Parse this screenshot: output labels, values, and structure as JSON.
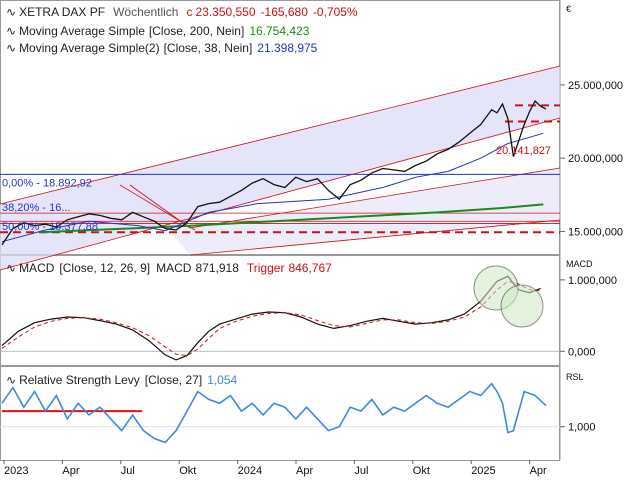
{
  "chart_data": [
    {
      "type": "line",
      "panel": "price",
      "title": "XETRA DAX PF",
      "interval": "Wöchentlich",
      "currency": "€",
      "last": {
        "prefix": "c",
        "close": "23.350,550",
        "change": "-165,680",
        "change_pct": "-0,705%"
      },
      "x_labels": [
        "2023",
        "Apr",
        "Jul",
        "Okt",
        "2024",
        "Apr",
        "Jul",
        "Okt",
        "2025",
        "Apr"
      ],
      "y_ticks": [
        "25.000,000",
        "20.000,000",
        "15.000,000"
      ],
      "ylim": [
        13600,
        26700
      ],
      "series": [
        {
          "name": "Moving Average Simple",
          "params": "[Close, 200, Nein]",
          "value": "16.754,423",
          "color": "#1a8c1a",
          "x": [
            0.07,
            0.2,
            0.35,
            0.5,
            0.65,
            0.8,
            0.92,
            0.995
          ],
          "values": [
            14950,
            15150,
            15400,
            15700,
            16000,
            16300,
            16600,
            16850
          ]
        },
        {
          "name": "Moving Average Simple(2)",
          "params": "[Close, 38, Nein]",
          "value": "21.398,975",
          "color": "#2233cc",
          "x": [
            0.0,
            0.08,
            0.16,
            0.25,
            0.3,
            0.38,
            0.47,
            0.6,
            0.7,
            0.76,
            0.82,
            0.88,
            0.93,
            0.995
          ],
          "values": [
            14300,
            15100,
            15700,
            15400,
            15050,
            16300,
            16900,
            17200,
            18000,
            18700,
            19100,
            20000,
            21000,
            21700
          ]
        },
        {
          "name": "close",
          "color": "#111111",
          "x": [
            0.0,
            0.02,
            0.04,
            0.06,
            0.08,
            0.1,
            0.12,
            0.14,
            0.16,
            0.18,
            0.2,
            0.22,
            0.24,
            0.26,
            0.28,
            0.3,
            0.32,
            0.34,
            0.36,
            0.38,
            0.4,
            0.42,
            0.44,
            0.46,
            0.48,
            0.5,
            0.52,
            0.54,
            0.56,
            0.58,
            0.6,
            0.62,
            0.64,
            0.66,
            0.68,
            0.7,
            0.72,
            0.74,
            0.76,
            0.78,
            0.8,
            0.82,
            0.84,
            0.86,
            0.88,
            0.9,
            0.91,
            0.92,
            0.93,
            0.94,
            0.96,
            0.97,
            0.98,
            0.99,
            1.0
          ],
          "values": [
            14100,
            15200,
            15600,
            15400,
            15500,
            15300,
            15800,
            16000,
            16200,
            16100,
            15900,
            15800,
            16300,
            16000,
            15700,
            15200,
            15100,
            15600,
            16700,
            16900,
            17000,
            17400,
            17800,
            18300,
            18600,
            18200,
            18000,
            18700,
            18400,
            18600,
            17800,
            17200,
            18200,
            18500,
            19000,
            19300,
            19200,
            19100,
            19500,
            19800,
            20300,
            20600,
            21100,
            21700,
            22300,
            23300,
            23100,
            23700,
            22700,
            20100,
            22300,
            23200,
            23900,
            23550,
            23350
          ]
        }
      ],
      "annotations": [
        {
          "text": "0,00% - 18.892,92",
          "color": "#2233cc",
          "value": 18892.92
        },
        {
          "text": "38,20% - 16...",
          "color": "#2233cc",
          "value": 16250
        },
        {
          "text": "50,00% - 15.377,88",
          "color": "#2233cc",
          "value": 15377.88
        },
        {
          "text": "20.141,827",
          "color": "#d01010",
          "value": 20141.827
        }
      ]
    },
    {
      "type": "line",
      "panel": "macd",
      "title": "MACD",
      "params": "[Close, 12, 26, 9]",
      "macd_value": "871,918",
      "trigger_label": "Trigger",
      "trigger_value": "846,767",
      "y_ticks": [
        "1.000,000",
        "0,000"
      ],
      "ylim": [
        -150,
        1250
      ],
      "series": [
        {
          "name": "MACD",
          "color": "#111111",
          "x": [
            0.0,
            0.03,
            0.06,
            0.09,
            0.12,
            0.15,
            0.18,
            0.21,
            0.24,
            0.27,
            0.3,
            0.32,
            0.34,
            0.36,
            0.38,
            0.4,
            0.43,
            0.46,
            0.49,
            0.52,
            0.55,
            0.58,
            0.61,
            0.64,
            0.67,
            0.7,
            0.73,
            0.76,
            0.79,
            0.82,
            0.85,
            0.88,
            0.91,
            0.93,
            0.95,
            0.97,
            0.99
          ],
          "values": [
            80,
            280,
            400,
            450,
            480,
            470,
            430,
            380,
            300,
            150,
            -50,
            -120,
            -60,
            120,
            280,
            380,
            450,
            520,
            550,
            540,
            480,
            380,
            320,
            360,
            420,
            460,
            420,
            380,
            400,
            440,
            520,
            700,
            980,
            1050,
            860,
            820,
            880
          ]
        },
        {
          "name": "Trigger",
          "color": "#d01010",
          "x": [
            0.0,
            0.03,
            0.06,
            0.09,
            0.12,
            0.15,
            0.18,
            0.21,
            0.24,
            0.27,
            0.3,
            0.32,
            0.34,
            0.36,
            0.38,
            0.4,
            0.43,
            0.46,
            0.49,
            0.52,
            0.55,
            0.58,
            0.61,
            0.64,
            0.67,
            0.7,
            0.73,
            0.76,
            0.79,
            0.82,
            0.85,
            0.88,
            0.91,
            0.93,
            0.95,
            0.97,
            0.99
          ],
          "values": [
            40,
            200,
            340,
            420,
            460,
            470,
            450,
            400,
            330,
            220,
            60,
            -40,
            -60,
            30,
            180,
            320,
            420,
            490,
            530,
            540,
            510,
            430,
            360,
            340,
            390,
            440,
            440,
            400,
            390,
            420,
            480,
            620,
            860,
            980,
            940,
            860,
            850
          ]
        }
      ]
    },
    {
      "type": "line",
      "panel": "rsl",
      "title": "Relative Strength Levy",
      "params": "[Close, 27]",
      "value": "1,054",
      "y_label": "RSL",
      "y_ticks": [
        "1,000"
      ],
      "ylim": [
        0.92,
        1.14
      ],
      "series": [
        {
          "name": "RSL",
          "color": "#3a8ae6",
          "x": [
            0.0,
            0.02,
            0.04,
            0.06,
            0.08,
            0.1,
            0.12,
            0.14,
            0.16,
            0.18,
            0.2,
            0.22,
            0.24,
            0.26,
            0.28,
            0.3,
            0.32,
            0.34,
            0.36,
            0.38,
            0.4,
            0.42,
            0.44,
            0.46,
            0.48,
            0.5,
            0.52,
            0.54,
            0.56,
            0.58,
            0.6,
            0.62,
            0.64,
            0.66,
            0.68,
            0.7,
            0.72,
            0.74,
            0.76,
            0.78,
            0.8,
            0.82,
            0.84,
            0.86,
            0.88,
            0.9,
            0.91,
            0.92,
            0.93,
            0.94,
            0.96,
            0.98,
            1.0
          ],
          "values": [
            1.06,
            1.1,
            1.05,
            1.09,
            1.04,
            1.08,
            1.02,
            1.06,
            1.03,
            1.05,
            1.02,
            0.99,
            1.03,
            0.99,
            0.97,
            0.96,
            0.99,
            1.04,
            1.09,
            1.07,
            1.06,
            1.08,
            1.04,
            1.06,
            1.03,
            1.06,
            1.05,
            1.02,
            1.05,
            1.02,
            0.99,
            1.0,
            1.05,
            1.04,
            1.07,
            1.03,
            1.05,
            1.04,
            1.06,
            1.08,
            1.06,
            1.05,
            1.07,
            1.09,
            1.08,
            1.11,
            1.09,
            1.06,
            0.985,
            0.99,
            1.09,
            1.08,
            1.054
          ]
        }
      ]
    }
  ]
}
